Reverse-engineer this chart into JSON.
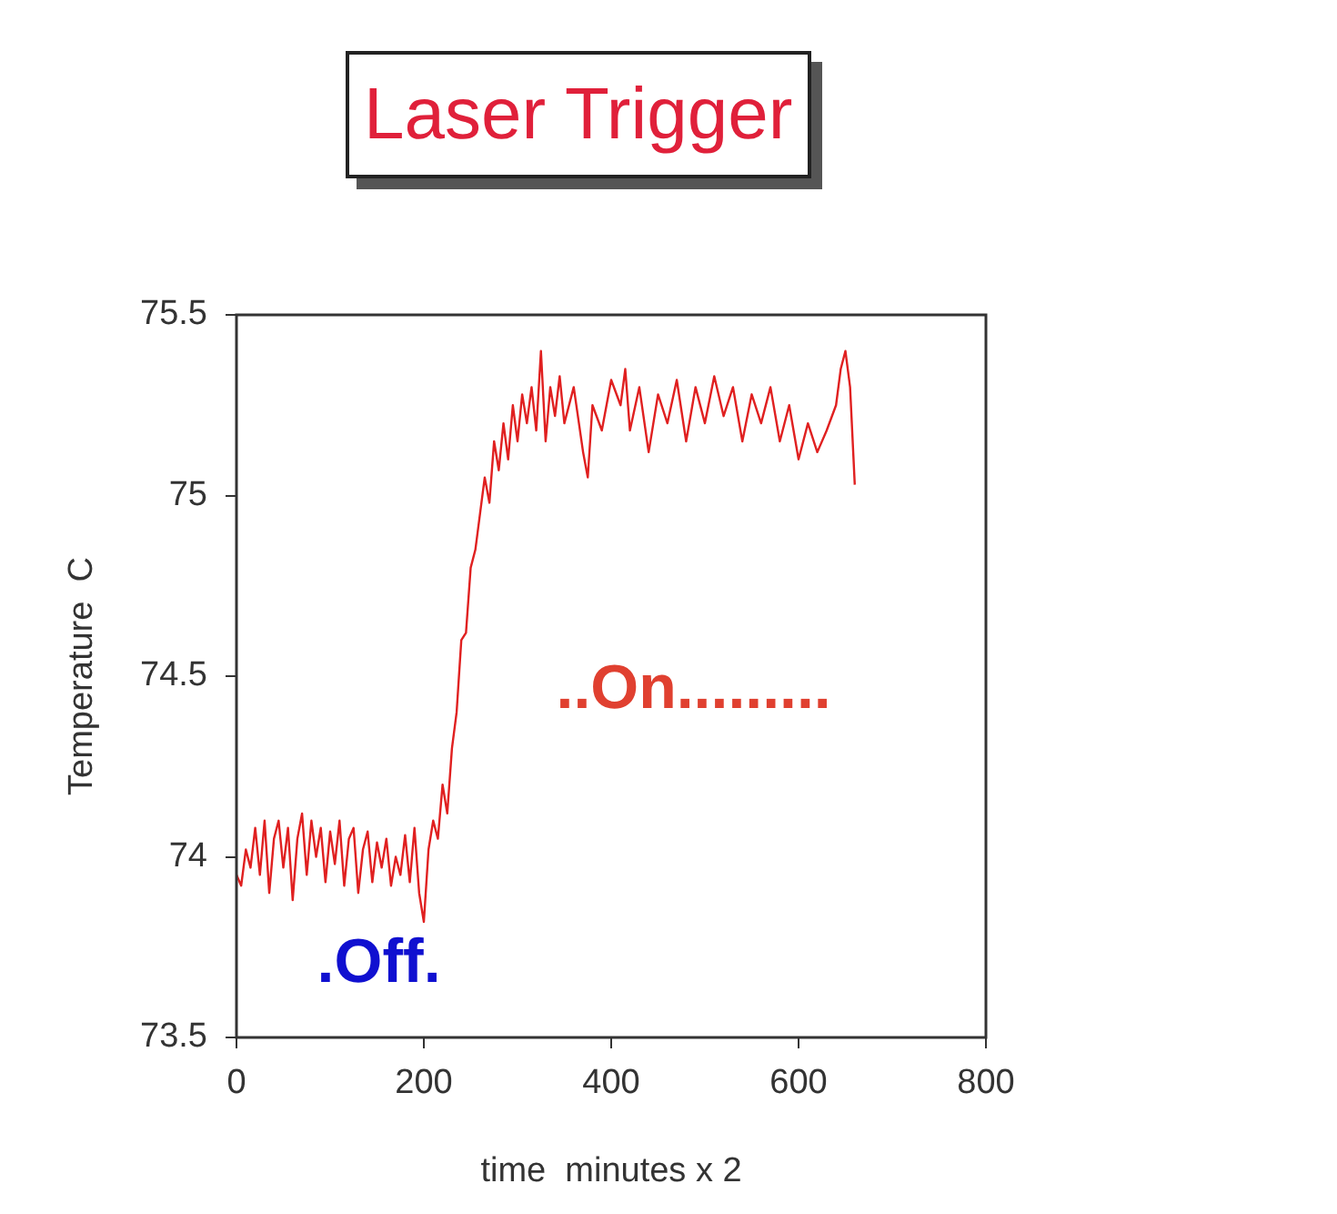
{
  "chart_data": {
    "type": "line",
    "title": "Laser Trigger",
    "xlabel": "time  minutes x 2",
    "ylabel": "Temperature  C",
    "xlim": [
      0,
      800
    ],
    "xticks": [
      0,
      200,
      400,
      600,
      800
    ],
    "ylim": [
      73.5,
      75.5
    ],
    "yticks": [
      73.5,
      74,
      74.5,
      75,
      75.5
    ],
    "grid": false,
    "legend": false,
    "marker": "none",
    "line_style": "solid",
    "annotations": [
      ".Off.",
      "..On........."
    ],
    "series": [
      {
        "color": "#e02020",
        "x": [
          0,
          5,
          10,
          15,
          20,
          25,
          30,
          35,
          40,
          45,
          50,
          55,
          60,
          65,
          70,
          75,
          80,
          85,
          90,
          95,
          100,
          105,
          110,
          115,
          120,
          125,
          130,
          135,
          140,
          145,
          150,
          155,
          160,
          165,
          170,
          175,
          180,
          185,
          190,
          195,
          200,
          205,
          210,
          215,
          220,
          225,
          230,
          235,
          240,
          245,
          250,
          255,
          260,
          265,
          270,
          275,
          280,
          285,
          290,
          295,
          300,
          305,
          310,
          315,
          320,
          325,
          330,
          335,
          340,
          345,
          350,
          360,
          370,
          375,
          380,
          390,
          400,
          410,
          415,
          420,
          430,
          440,
          450,
          460,
          470,
          480,
          490,
          500,
          510,
          520,
          530,
          540,
          550,
          560,
          570,
          580,
          590,
          600,
          610,
          620,
          630,
          640,
          645,
          650,
          655,
          660
        ],
        "values": [
          73.95,
          73.92,
          74.02,
          73.97,
          74.08,
          73.95,
          74.1,
          73.9,
          74.05,
          74.1,
          73.97,
          74.08,
          73.88,
          74.05,
          74.12,
          73.95,
          74.1,
          74.0,
          74.08,
          73.93,
          74.07,
          73.98,
          74.1,
          73.92,
          74.05,
          74.08,
          73.9,
          74.02,
          74.07,
          73.93,
          74.04,
          73.97,
          74.05,
          73.92,
          74.0,
          73.95,
          74.06,
          73.93,
          74.08,
          73.9,
          73.82,
          74.02,
          74.1,
          74.05,
          74.2,
          74.12,
          74.3,
          74.4,
          74.6,
          74.62,
          74.8,
          74.85,
          74.95,
          75.05,
          74.98,
          75.15,
          75.07,
          75.2,
          75.1,
          75.25,
          75.15,
          75.28,
          75.2,
          75.3,
          75.18,
          75.4,
          75.15,
          75.3,
          75.22,
          75.33,
          75.2,
          75.3,
          75.12,
          75.05,
          75.25,
          75.18,
          75.32,
          75.25,
          75.35,
          75.18,
          75.3,
          75.12,
          75.28,
          75.2,
          75.32,
          75.15,
          75.3,
          75.2,
          75.33,
          75.22,
          75.3,
          75.15,
          75.28,
          75.2,
          75.3,
          75.15,
          75.25,
          75.1,
          75.2,
          75.12,
          75.18,
          75.25,
          75.35,
          75.4,
          75.3,
          75.03
        ]
      }
    ]
  }
}
